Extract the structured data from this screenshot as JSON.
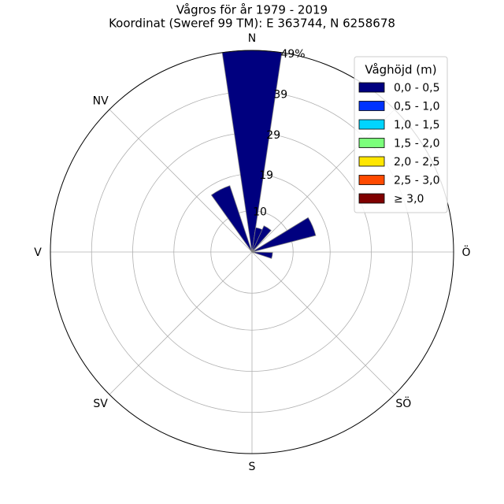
{
  "chart_data": {
    "type": "polar-bar",
    "title": "Vågros för år 1979 - 2019",
    "subtitle": "Koordinat (Sweref 99 TM): E 363744, N 6258678",
    "directions": [
      {
        "label": "N",
        "angle": 0
      },
      {
        "label": "NV",
        "angle": 315
      },
      {
        "label": "V",
        "angle": 270
      },
      {
        "label": "SV",
        "angle": 225
      },
      {
        "label": "S",
        "angle": 180
      },
      {
        "label": "SÖ",
        "angle": 135
      },
      {
        "label": "Ö",
        "angle": 90
      }
    ],
    "rlim": [
      0,
      49
    ],
    "r_ticks": [
      {
        "value": 10,
        "label": "10"
      },
      {
        "value": 19,
        "label": "19"
      },
      {
        "value": 29,
        "label": "29"
      },
      {
        "value": 39,
        "label": "39"
      },
      {
        "value": 49,
        "label": "49%"
      }
    ],
    "legend_title": "Våghöjd (m)",
    "legend_placement": "top-right",
    "bins": [
      {
        "label": "0,0 - 0,5",
        "color": "#00007f"
      },
      {
        "label": "0,5 - 1,0",
        "color": "#0033ff"
      },
      {
        "label": "1,0 - 1,5",
        "color": "#00d5ff"
      },
      {
        "label": "1,5 - 2,0",
        "color": "#7bff7b"
      },
      {
        "label": "2,0 - 2,5",
        "color": "#ffe600"
      },
      {
        "label": "2,5 - 3,0",
        "color": "#ff4a00"
      },
      {
        "label": "≥ 3,0",
        "color": "#7f0000"
      }
    ],
    "bars": [
      {
        "direction_deg": 0,
        "width_deg": 17,
        "values": [
          49,
          0,
          0,
          0,
          0,
          0,
          0
        ]
      },
      {
        "direction_deg": 17,
        "width_deg": 17,
        "values": [
          6,
          0,
          0,
          0,
          0,
          0,
          0
        ]
      },
      {
        "direction_deg": 33,
        "width_deg": 17,
        "values": [
          7,
          0,
          0,
          0,
          0,
          0,
          0
        ]
      },
      {
        "direction_deg": 67,
        "width_deg": 17,
        "values": [
          16,
          0,
          0,
          0,
          0,
          0,
          0
        ]
      },
      {
        "direction_deg": 100,
        "width_deg": 17,
        "values": [
          5,
          0,
          0,
          0,
          0,
          0,
          0
        ]
      },
      {
        "direction_deg": 333,
        "width_deg": 17,
        "values": [
          17,
          0,
          0,
          0,
          0,
          0,
          0
        ]
      }
    ],
    "grid": true
  }
}
